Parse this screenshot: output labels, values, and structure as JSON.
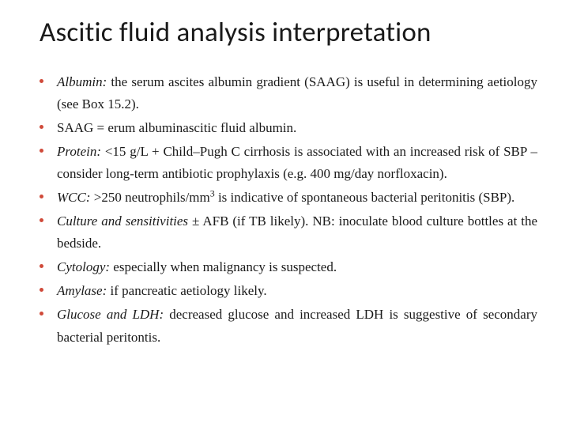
{
  "title": "Ascitic fluid analysis interpretation",
  "bullet_color": "#d04a3a",
  "text_color": "#1a1a1a",
  "title_font_family": "Calibri, Arial, sans-serif",
  "body_font_family": "Georgia, 'Times New Roman', serif",
  "title_fontsize": 35,
  "body_fontsize": 17,
  "items": [
    {
      "term": "Albumin:",
      "rest": " the serum ascites albumin gradient (SAAG) is useful in determining aetiology (see Box 15.2)."
    },
    {
      "term": "",
      "rest": "SAAG = erum albuminascitic fluid albumin."
    },
    {
      "term": "Protein:",
      "rest": " <15 g/L + Child–Pugh C cirrhosis is associated with an increased risk of SBP – consider long-term antibiotic prophylaxis (e.g. 400 mg/day norfloxacin)."
    },
    {
      "term": "WCC:",
      "rest_pre": " >250 neutrophils/mm",
      "sup": "3",
      "rest_post": " is indicative of spontaneous bacterial peritonitis (SBP)."
    },
    {
      "term": "Culture and sensitivities",
      "rest": " ± AFB (if TB likely). NB: inoculate blood culture bottles at the bedside."
    },
    {
      "term": "Cytology:",
      "rest": " especially when malignancy is suspected."
    },
    {
      "term": "Amylase:",
      "rest": " if pancreatic aetiology likely."
    },
    {
      "term": "Glucose and LDH:",
      "rest": " decreased glucose and increased LDH is suggestive of secondary bacterial peritontis."
    }
  ]
}
